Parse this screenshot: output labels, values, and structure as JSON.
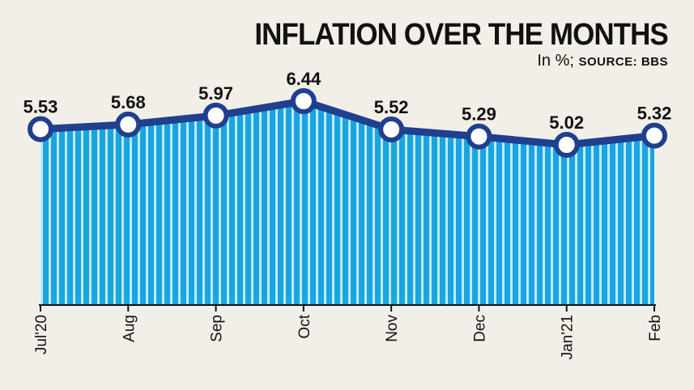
{
  "title": "INFLATION OVER THE MONTHS",
  "subtitle_unit": "In %;",
  "subtitle_source": "SOURCE: BBS",
  "colors": {
    "background": "#f2efe8",
    "line": "#1f3f8f",
    "fill_dark": "#1aa5e0",
    "fill_light": "#bfe9f8",
    "marker_fill": "#ffffff",
    "text": "#111111"
  },
  "chart_data": {
    "type": "area",
    "title": "INFLATION OVER THE MONTHS",
    "ylabel": "In %",
    "categories": [
      "Jul'20",
      "Aug",
      "Sep",
      "Oct",
      "Nov",
      "Dec",
      "Jan'21",
      "Feb"
    ],
    "values": [
      5.53,
      5.68,
      5.97,
      6.44,
      5.52,
      5.29,
      5.02,
      5.32
    ],
    "data_labels": [
      "5.53",
      "5.68",
      "5.97",
      "6.44",
      "5.52",
      "5.29",
      "5.02",
      "5.32"
    ],
    "ylim": [
      0,
      6.44
    ],
    "grid": false,
    "legend": "none"
  }
}
